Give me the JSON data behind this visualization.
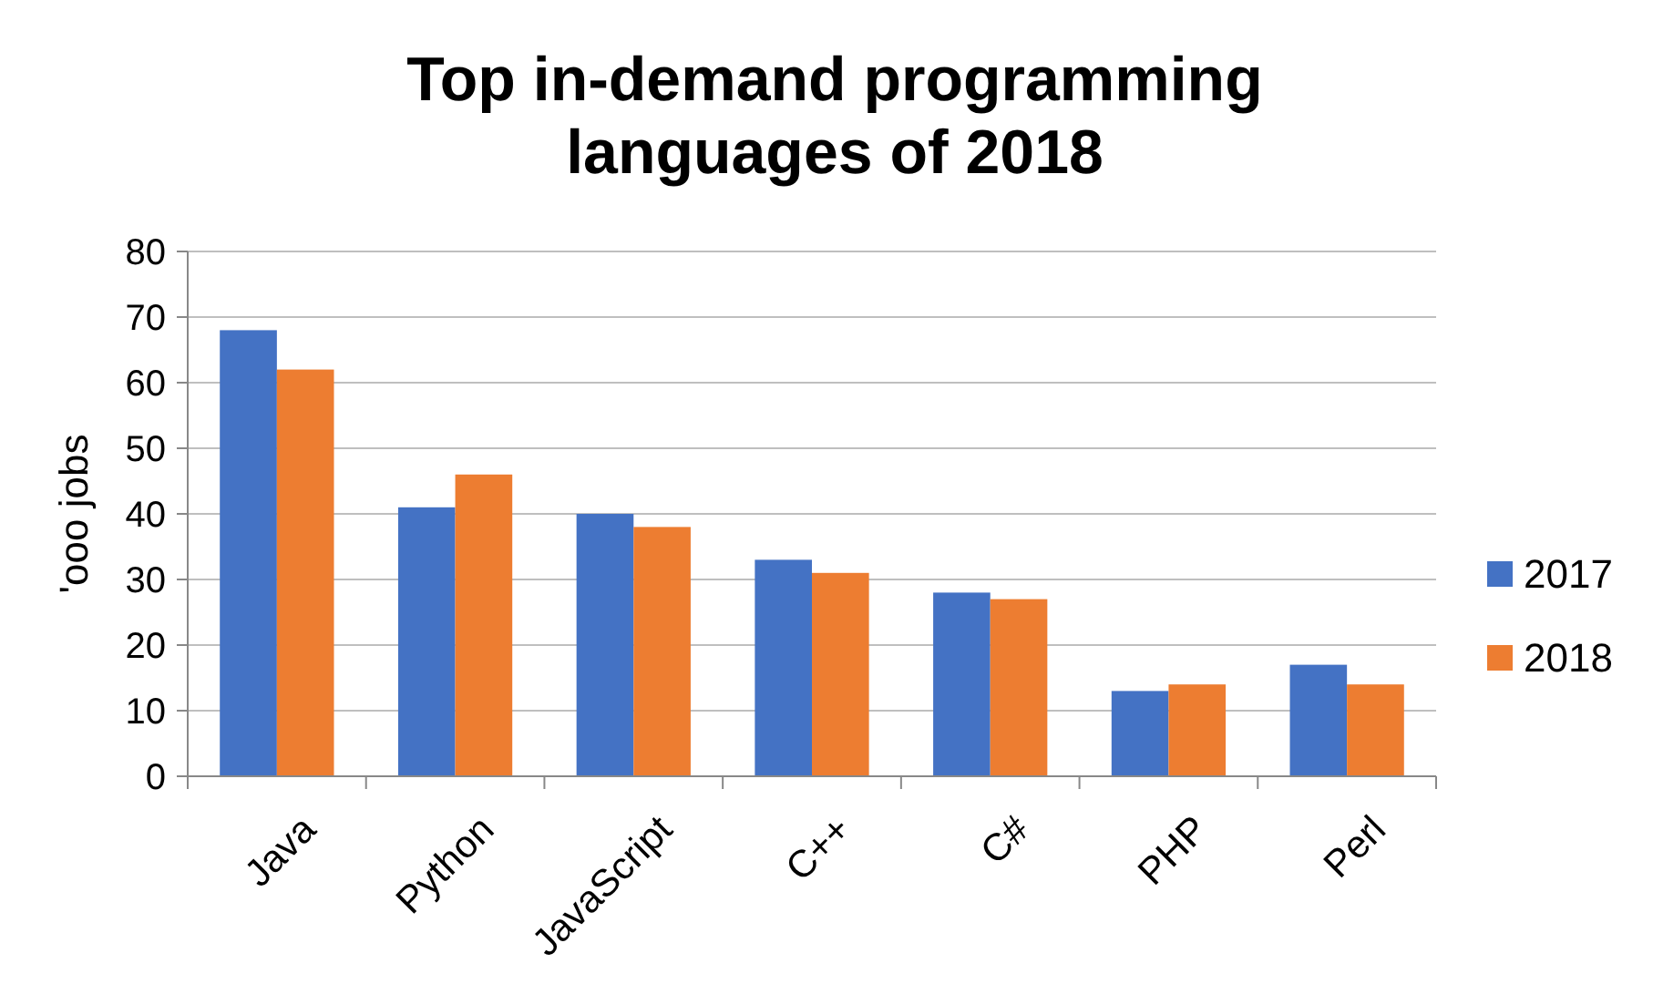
{
  "chart_data": {
    "type": "bar",
    "title": "Top in-demand programming languages of 2018",
    "ylabel": "'ooo jobs",
    "categories": [
      "Java",
      "Python",
      "JavaScript",
      "C++",
      "C#",
      "PHP",
      "Perl"
    ],
    "series": [
      {
        "name": "2017",
        "color": "#4472c4",
        "values": [
          68,
          41,
          40,
          33,
          28,
          13,
          17
        ]
      },
      {
        "name": "2018",
        "color": "#ed7d31",
        "values": [
          62,
          46,
          38,
          31,
          27,
          14,
          14
        ]
      }
    ],
    "ylim": [
      0,
      80
    ],
    "yticks": [
      0,
      10,
      20,
      30,
      40,
      50,
      60,
      70,
      80
    ],
    "grid": "y",
    "legend": "right"
  }
}
